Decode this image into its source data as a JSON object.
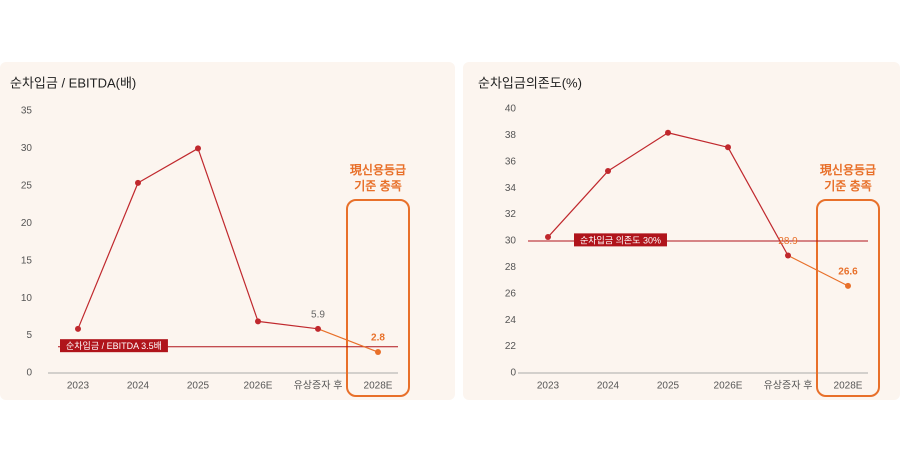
{
  "chart_data": [
    {
      "type": "line",
      "title": "순차입금 / EBITDA(배)",
      "categories": [
        "2023",
        "2024",
        "2025",
        "2026E",
        "유상증자 후",
        "2028E"
      ],
      "series": [
        {
          "color": "#c0282d",
          "values": [
            5.9,
            25.4,
            30.0,
            6.9,
            5.9,
            2.8
          ]
        }
      ],
      "highlight": {
        "index": 5,
        "color": "#e8702a",
        "annotation": [
          "現신용등급",
          "기준 충족"
        ]
      },
      "labeled": [
        4,
        5
      ],
      "reference": {
        "value": 3.5,
        "label": "순차입금 / EBITDA  3.5배",
        "color": "#b0141b"
      },
      "ylim": [
        0,
        35
      ],
      "yticks": [
        0,
        5,
        10,
        15,
        20,
        25,
        30,
        35
      ]
    },
    {
      "type": "line",
      "title": "순차입금의존도(%)",
      "categories": [
        "2023",
        "2024",
        "2025",
        "2026E",
        "유상증자 후",
        "2028E"
      ],
      "series": [
        {
          "color": "#c0282d",
          "values": [
            30.3,
            35.3,
            38.2,
            37.1,
            28.9,
            26.6
          ]
        }
      ],
      "highlight": {
        "index": 5,
        "color": "#e8702a",
        "annotation": [
          "現신용등급",
          "기준 충족"
        ]
      },
      "labeled": [
        4,
        5
      ],
      "reference": {
        "value": 30,
        "label": "순차입금 의존도 30%",
        "color": "#b0141b"
      },
      "ylim": [
        0,
        40
      ],
      "yticks": [
        0,
        22,
        24,
        26,
        28,
        30,
        32,
        34,
        36,
        38,
        40
      ]
    }
  ]
}
